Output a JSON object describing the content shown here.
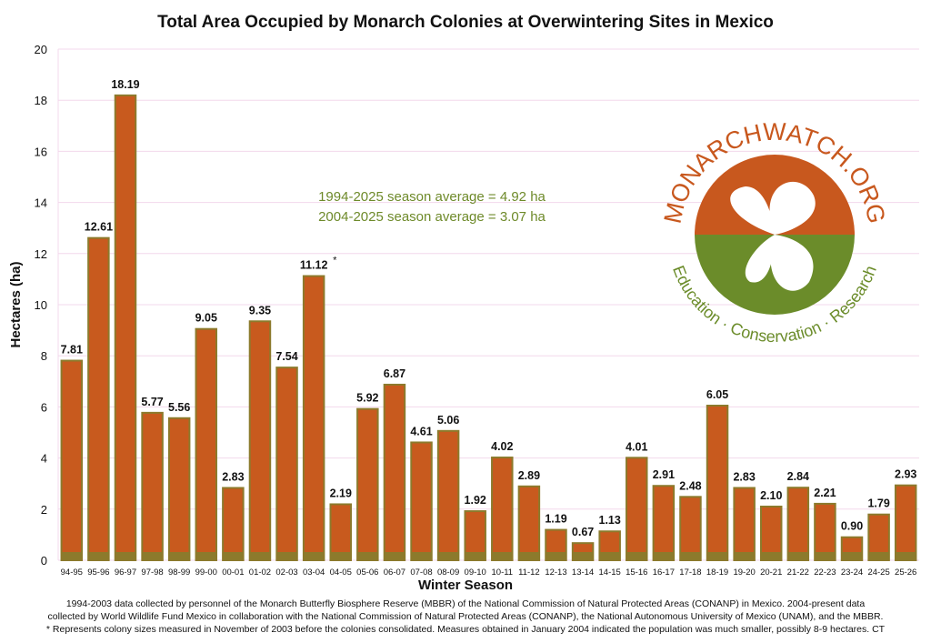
{
  "chart_data": {
    "type": "bar",
    "title": "Total Area Occupied by Monarch Colonies at Overwintering Sites in Mexico",
    "xlabel": "Winter Season",
    "ylabel": "Hectares (ha)",
    "ylim": [
      0,
      20
    ],
    "yticks": [
      0,
      2,
      4,
      6,
      8,
      10,
      12,
      14,
      16,
      18,
      20
    ],
    "grid": true,
    "categories": [
      "94-95",
      "95-96",
      "96-97",
      "97-98",
      "98-99",
      "99-00",
      "00-01",
      "01-02",
      "02-03",
      "03-04",
      "04-05",
      "05-06",
      "06-07",
      "07-08",
      "08-09",
      "09-10",
      "10-11",
      "11-12",
      "12-13",
      "13-14",
      "14-15",
      "15-16",
      "16-17",
      "17-18",
      "18-19",
      "19-20",
      "20-21",
      "21-22",
      "22-23",
      "23-24",
      "24-25",
      "25-26"
    ],
    "values": [
      7.81,
      12.61,
      18.19,
      5.77,
      5.56,
      9.05,
      2.83,
      9.35,
      7.54,
      11.12,
      2.19,
      5.92,
      6.87,
      4.61,
      5.06,
      1.92,
      4.02,
      2.89,
      1.19,
      0.67,
      1.13,
      4.01,
      2.91,
      2.48,
      6.05,
      2.83,
      2.1,
      2.84,
      2.21,
      0.9,
      1.79,
      2.93
    ],
    "data_labels": [
      "7.81",
      "12.61",
      "18.19",
      "5.77",
      "5.56",
      "9.05",
      "2.83",
      "9.35",
      "7.54",
      "11.12",
      "2.19",
      "5.92",
      "6.87",
      "4.61",
      "5.06",
      "1.92",
      "4.02",
      "2.89",
      "1.19",
      "0.67",
      "1.13",
      "4.01",
      "2.91",
      "2.48",
      "6.05",
      "2.83",
      "2.10",
      "2.84",
      "2.21",
      "0.90",
      "1.79",
      "2.93"
    ],
    "asterisk_category": "03-04",
    "asterisk": "*",
    "annotations": [
      "1994-2025 season average = 4.92 ha",
      "2004-2025 season average = 3.07 ha"
    ],
    "colors": {
      "bar": "#c85a1e",
      "bar_edge": "#8c7a2c",
      "annotation": "#6e8a2a",
      "logo_orange": "#c8581e",
      "logo_green": "#6b8c2a"
    }
  },
  "logo": {
    "top": "MONARCHWATCH.ORG",
    "bottom": "Education · Conservation · Research"
  },
  "footnotes": [
    "1994-2003 data collected by personnel of the Monarch Butterfly Biosphere Reserve (MBBR) of the National Commission of Natural Protected Areas (CONANP) in Mexico. 2004-present data",
    "collected by World Wildlife Fund Mexico in collaboration with the National Commission of Natural Protected Areas (CONANP), the National Autonomous University of Mexico (UNAM), and the MBBR.",
    "* Represents colony sizes measured in November of 2003 before the colonies consolidated. Measures obtained in January 2004 indicated the population was much smaller, possibly 8-9 hectares. CT"
  ]
}
